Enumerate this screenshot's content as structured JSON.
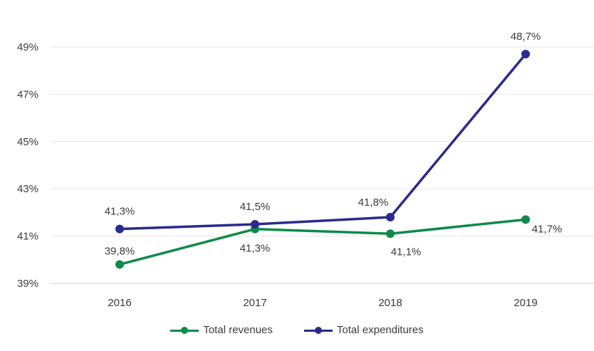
{
  "chart_data": {
    "type": "line",
    "categories": [
      "2016",
      "2017",
      "2018",
      "2019"
    ],
    "series": [
      {
        "name": "Total revenues",
        "values": [
          39.8,
          41.3,
          41.1,
          41.7
        ],
        "labels": [
          "39,8%",
          "41,3%",
          "41,1%",
          "41,7%"
        ],
        "color": "#0f8a4a"
      },
      {
        "name": "Total expenditures",
        "values": [
          41.3,
          41.5,
          41.8,
          48.7
        ],
        "labels": [
          "41,3%",
          "41,5%",
          "41,8%",
          "48,7%"
        ],
        "color": "#2a2a8f"
      }
    ],
    "yticks": [
      39,
      41,
      43,
      45,
      47,
      49
    ],
    "ytick_labels": [
      "39%",
      "41%",
      "43%",
      "45%",
      "47%",
      "49%"
    ],
    "ylim": [
      39,
      49
    ],
    "grid": "horizontal",
    "legend_position": "bottom"
  },
  "legend": {
    "revenues": "Total revenues",
    "expenditures": "Total expenditures"
  }
}
